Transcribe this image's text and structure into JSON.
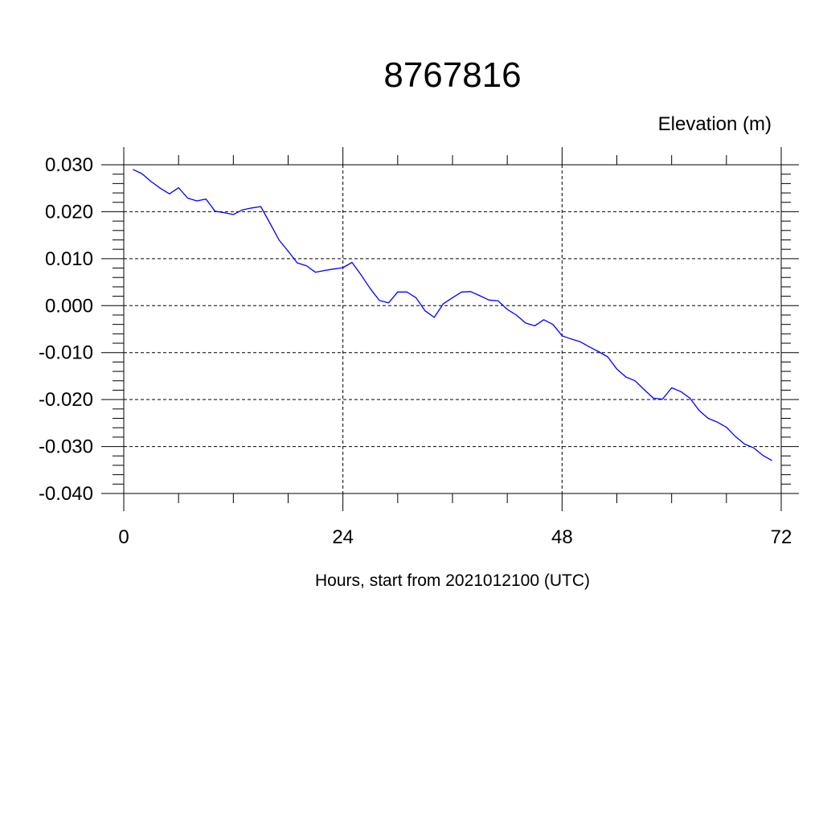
{
  "chart_data": {
    "type": "line",
    "title": "8767816",
    "ylabel": "Elevation (m)",
    "xlabel": "Hours, start from 2021012100 (UTC)",
    "xlim": [
      0,
      72
    ],
    "ylim": [
      -0.04,
      0.03
    ],
    "x_ticks": [
      0,
      24,
      48,
      72
    ],
    "x_tick_labels": [
      "0",
      "24",
      "48",
      "72"
    ],
    "y_ticks": [
      0.03,
      0.02,
      0.01,
      0.0,
      -0.01,
      -0.02,
      -0.03,
      -0.04
    ],
    "y_tick_labels": [
      "0.030",
      "0.020",
      "0.010",
      "0.000",
      "-0.010",
      "-0.020",
      "-0.030",
      "-0.040"
    ],
    "grid": true,
    "series": [
      {
        "color": "#0000ff",
        "x": [
          1,
          2,
          3,
          4,
          5,
          6,
          7,
          8,
          9,
          10,
          11,
          12,
          13,
          14,
          15,
          16,
          17,
          18,
          19,
          20,
          21,
          22,
          23,
          24,
          25,
          26,
          27,
          28,
          29,
          30,
          31,
          32,
          33,
          34,
          35,
          36,
          37,
          38,
          39,
          40,
          41,
          42,
          43,
          44,
          45,
          46,
          47,
          48,
          49,
          50,
          51,
          52,
          53,
          54,
          55,
          56,
          57,
          58,
          59,
          60,
          61,
          62,
          63,
          64,
          65,
          66,
          67,
          68,
          69,
          70,
          71
        ],
        "y": [
          0.029,
          0.0281,
          0.0264,
          0.025,
          0.0238,
          0.0251,
          0.0229,
          0.0223,
          0.0227,
          0.0201,
          0.0198,
          0.0194,
          0.0204,
          0.0208,
          0.0211,
          0.0176,
          0.014,
          0.0116,
          0.0091,
          0.0085,
          0.0071,
          0.0075,
          0.0078,
          0.0081,
          0.0092,
          0.0065,
          0.0036,
          0.0011,
          0.0006,
          0.0029,
          0.0029,
          0.0017,
          -0.0011,
          -0.0025,
          0.0004,
          0.0017,
          0.0029,
          0.003,
          0.0021,
          0.0012,
          0.001,
          -0.0008,
          -0.002,
          -0.0037,
          -0.0043,
          -0.003,
          -0.004,
          -0.0064,
          -0.0071,
          -0.0077,
          -0.0088,
          -0.0098,
          -0.0109,
          -0.0135,
          -0.0152,
          -0.016,
          -0.0179,
          -0.0197,
          -0.0199,
          -0.0175,
          -0.0183,
          -0.0197,
          -0.0223,
          -0.024,
          -0.0248,
          -0.0259,
          -0.0279,
          -0.0295,
          -0.0303,
          -0.0319,
          -0.033
        ]
      }
    ]
  }
}
